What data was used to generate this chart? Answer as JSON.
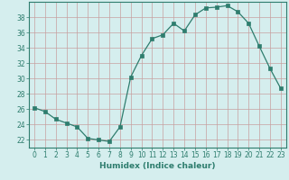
{
  "x": [
    0,
    1,
    2,
    3,
    4,
    5,
    6,
    7,
    8,
    9,
    10,
    11,
    12,
    13,
    14,
    15,
    16,
    17,
    18,
    19,
    20,
    21,
    22,
    23
  ],
  "y": [
    26.2,
    25.7,
    24.7,
    24.2,
    23.7,
    22.2,
    22.0,
    21.8,
    23.7,
    30.2,
    33.0,
    35.2,
    35.7,
    37.2,
    36.2,
    38.3,
    39.2,
    39.3,
    39.5,
    38.7,
    37.2,
    34.2,
    31.3,
    28.7
  ],
  "xlabel": "Humidex (Indice chaleur)",
  "xlim": [
    -0.5,
    23.5
  ],
  "ylim": [
    21.0,
    40.0
  ],
  "yticks": [
    22,
    24,
    26,
    28,
    30,
    32,
    34,
    36,
    38
  ],
  "xticks": [
    0,
    1,
    2,
    3,
    4,
    5,
    6,
    7,
    8,
    9,
    10,
    11,
    12,
    13,
    14,
    15,
    16,
    17,
    18,
    19,
    20,
    21,
    22,
    23
  ],
  "line_color": "#2e7d6e",
  "marker": "s",
  "marker_size": 2.5,
  "bg_color": "#d5eeee",
  "grid_color": "#c8a0a0",
  "label_fontsize": 6.5,
  "tick_fontsize": 5.5
}
